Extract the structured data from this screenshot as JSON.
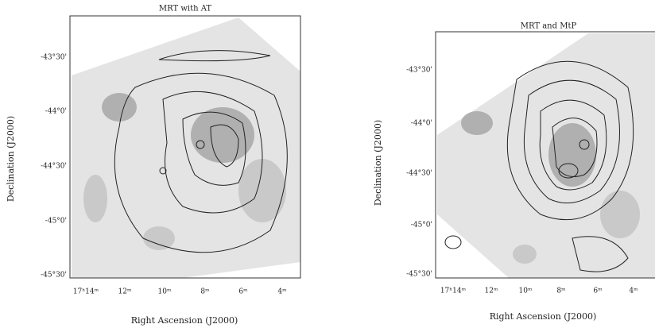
{
  "panels": [
    {
      "title": "MRT with AT",
      "x_label": "Right Ascension (J2000)",
      "y_label": "Declination (J2000)",
      "x_ticks": [
        "17ʰ14ᵐ",
        "12ᵐ",
        "10ᵐ",
        "8ᵐ",
        "6ᵐ",
        "4ᵐ"
      ],
      "y_ticks": [
        "-43°30'",
        "-44°0'",
        "-44°30'",
        "-45°0'",
        "-45°30'"
      ]
    },
    {
      "title": "MRT and MtP",
      "x_label": "Right Ascension (J2000)",
      "y_label": "Declination (J2000)",
      "x_ticks": [
        "17ʰ14ᵐ",
        "12ᵐ",
        "10ᵐ",
        "8ᵐ",
        "6ᵐ",
        "4ᵐ"
      ],
      "y_ticks": [
        "-43°30'",
        "-44°0'",
        "-44°30'",
        "-45°0'",
        "-45°30'"
      ]
    }
  ]
}
